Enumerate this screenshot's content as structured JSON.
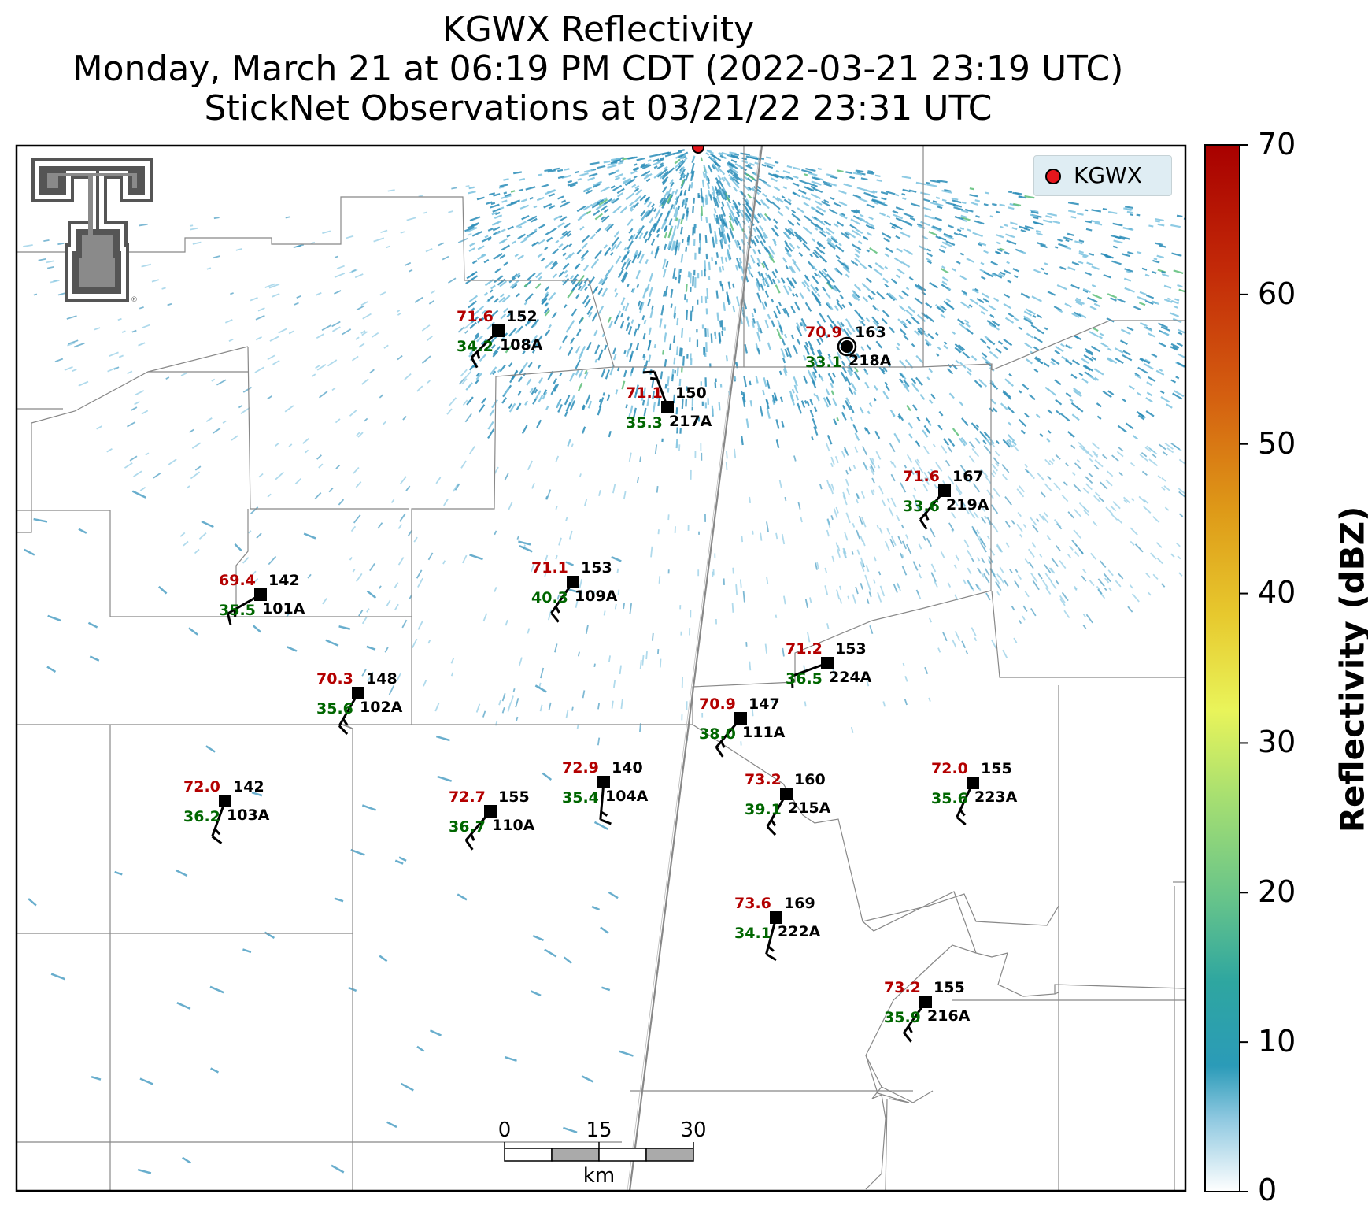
{
  "title": {
    "line1": "KGWX Reflectivity",
    "line2": "Monday, March 21 at 06:19 PM CDT (2022-03-21 23:19 UTC)",
    "line3": "StickNet Observations at 03/21/22 23:31 UTC"
  },
  "legend": {
    "label": "KGWX",
    "marker_color": "#e5161c"
  },
  "colorbar": {
    "label": "Reflectivity (dBZ)",
    "ticks": [
      "0",
      "10",
      "20",
      "30",
      "40",
      "50",
      "60",
      "70"
    ],
    "min": 0,
    "max": 70
  },
  "scale_bar": {
    "ticks": [
      "0",
      "15",
      "30"
    ],
    "unit": "km"
  },
  "logo": {
    "name": "texas-tech-double-t-logo"
  },
  "colors": {
    "temperature": "#b30000",
    "dewpoint": "#006600",
    "station_id": "#000000",
    "radar_light": "#7cc3e0",
    "radar_mid": "#2a8cb8",
    "radar_high": "#5dbf7a"
  },
  "stations": [
    {
      "id": "108A",
      "temp": "71.6",
      "dew": "34.2",
      "pressure": "152",
      "dir": 315,
      "lx": 633,
      "ly": 420
    },
    {
      "id": "218A",
      "temp": "70.9",
      "dew": "33.1",
      "pressure": "163",
      "dir": 0,
      "lx": 1076,
      "ly": 440,
      "calm": true
    },
    {
      "id": "217A",
      "temp": "71.1",
      "dew": "35.3",
      "pressure": "150",
      "dir": 200,
      "lx": 848,
      "ly": 517
    },
    {
      "id": "219A",
      "temp": "71.6",
      "dew": "33.6",
      "pressure": "167",
      "dir": 320,
      "lx": 1200,
      "ly": 623
    },
    {
      "id": "101A",
      "temp": "69.4",
      "dew": "35.5",
      "pressure": "142",
      "dir": 300,
      "lx": 331,
      "ly": 755
    },
    {
      "id": "109A",
      "temp": "71.1",
      "dew": "40.3",
      "pressure": "153",
      "dir": 325,
      "lx": 728,
      "ly": 739
    },
    {
      "id": "224A",
      "temp": "71.2",
      "dew": "36.5",
      "pressure": "153",
      "dir": 290,
      "lx": 1051,
      "ly": 842
    },
    {
      "id": "102A",
      "temp": "70.3",
      "dew": "35.6",
      "pressure": "148",
      "dir": 330,
      "lx": 455,
      "ly": 880
    },
    {
      "id": "111A",
      "temp": "70.9",
      "dew": "38.0",
      "pressure": "147",
      "dir": 320,
      "lx": 941,
      "ly": 912
    },
    {
      "id": "103A",
      "temp": "72.0",
      "dew": "36.2",
      "pressure": "142",
      "dir": 340,
      "lx": 286,
      "ly": 1017
    },
    {
      "id": "110A",
      "temp": "72.7",
      "dew": "36.7",
      "pressure": "155",
      "dir": 320,
      "lx": 623,
      "ly": 1030
    },
    {
      "id": "104A",
      "temp": "72.9",
      "dew": "35.4",
      "pressure": "140",
      "dir": 355,
      "lx": 767,
      "ly": 993
    },
    {
      "id": "215A",
      "temp": "73.2",
      "dew": "39.1",
      "pressure": "160",
      "dir": 330,
      "lx": 999,
      "ly": 1008
    },
    {
      "id": "223A",
      "temp": "72.0",
      "dew": "35.6",
      "pressure": "155",
      "dir": 335,
      "lx": 1236,
      "ly": 994
    },
    {
      "id": "222A",
      "temp": "73.6",
      "dew": "34.1",
      "pressure": "169",
      "dir": 345,
      "lx": 986,
      "ly": 1165
    },
    {
      "id": "216A",
      "temp": "73.2",
      "dew": "35.9",
      "pressure": "155",
      "dir": 325,
      "lx": 1176,
      "ly": 1272
    }
  ]
}
